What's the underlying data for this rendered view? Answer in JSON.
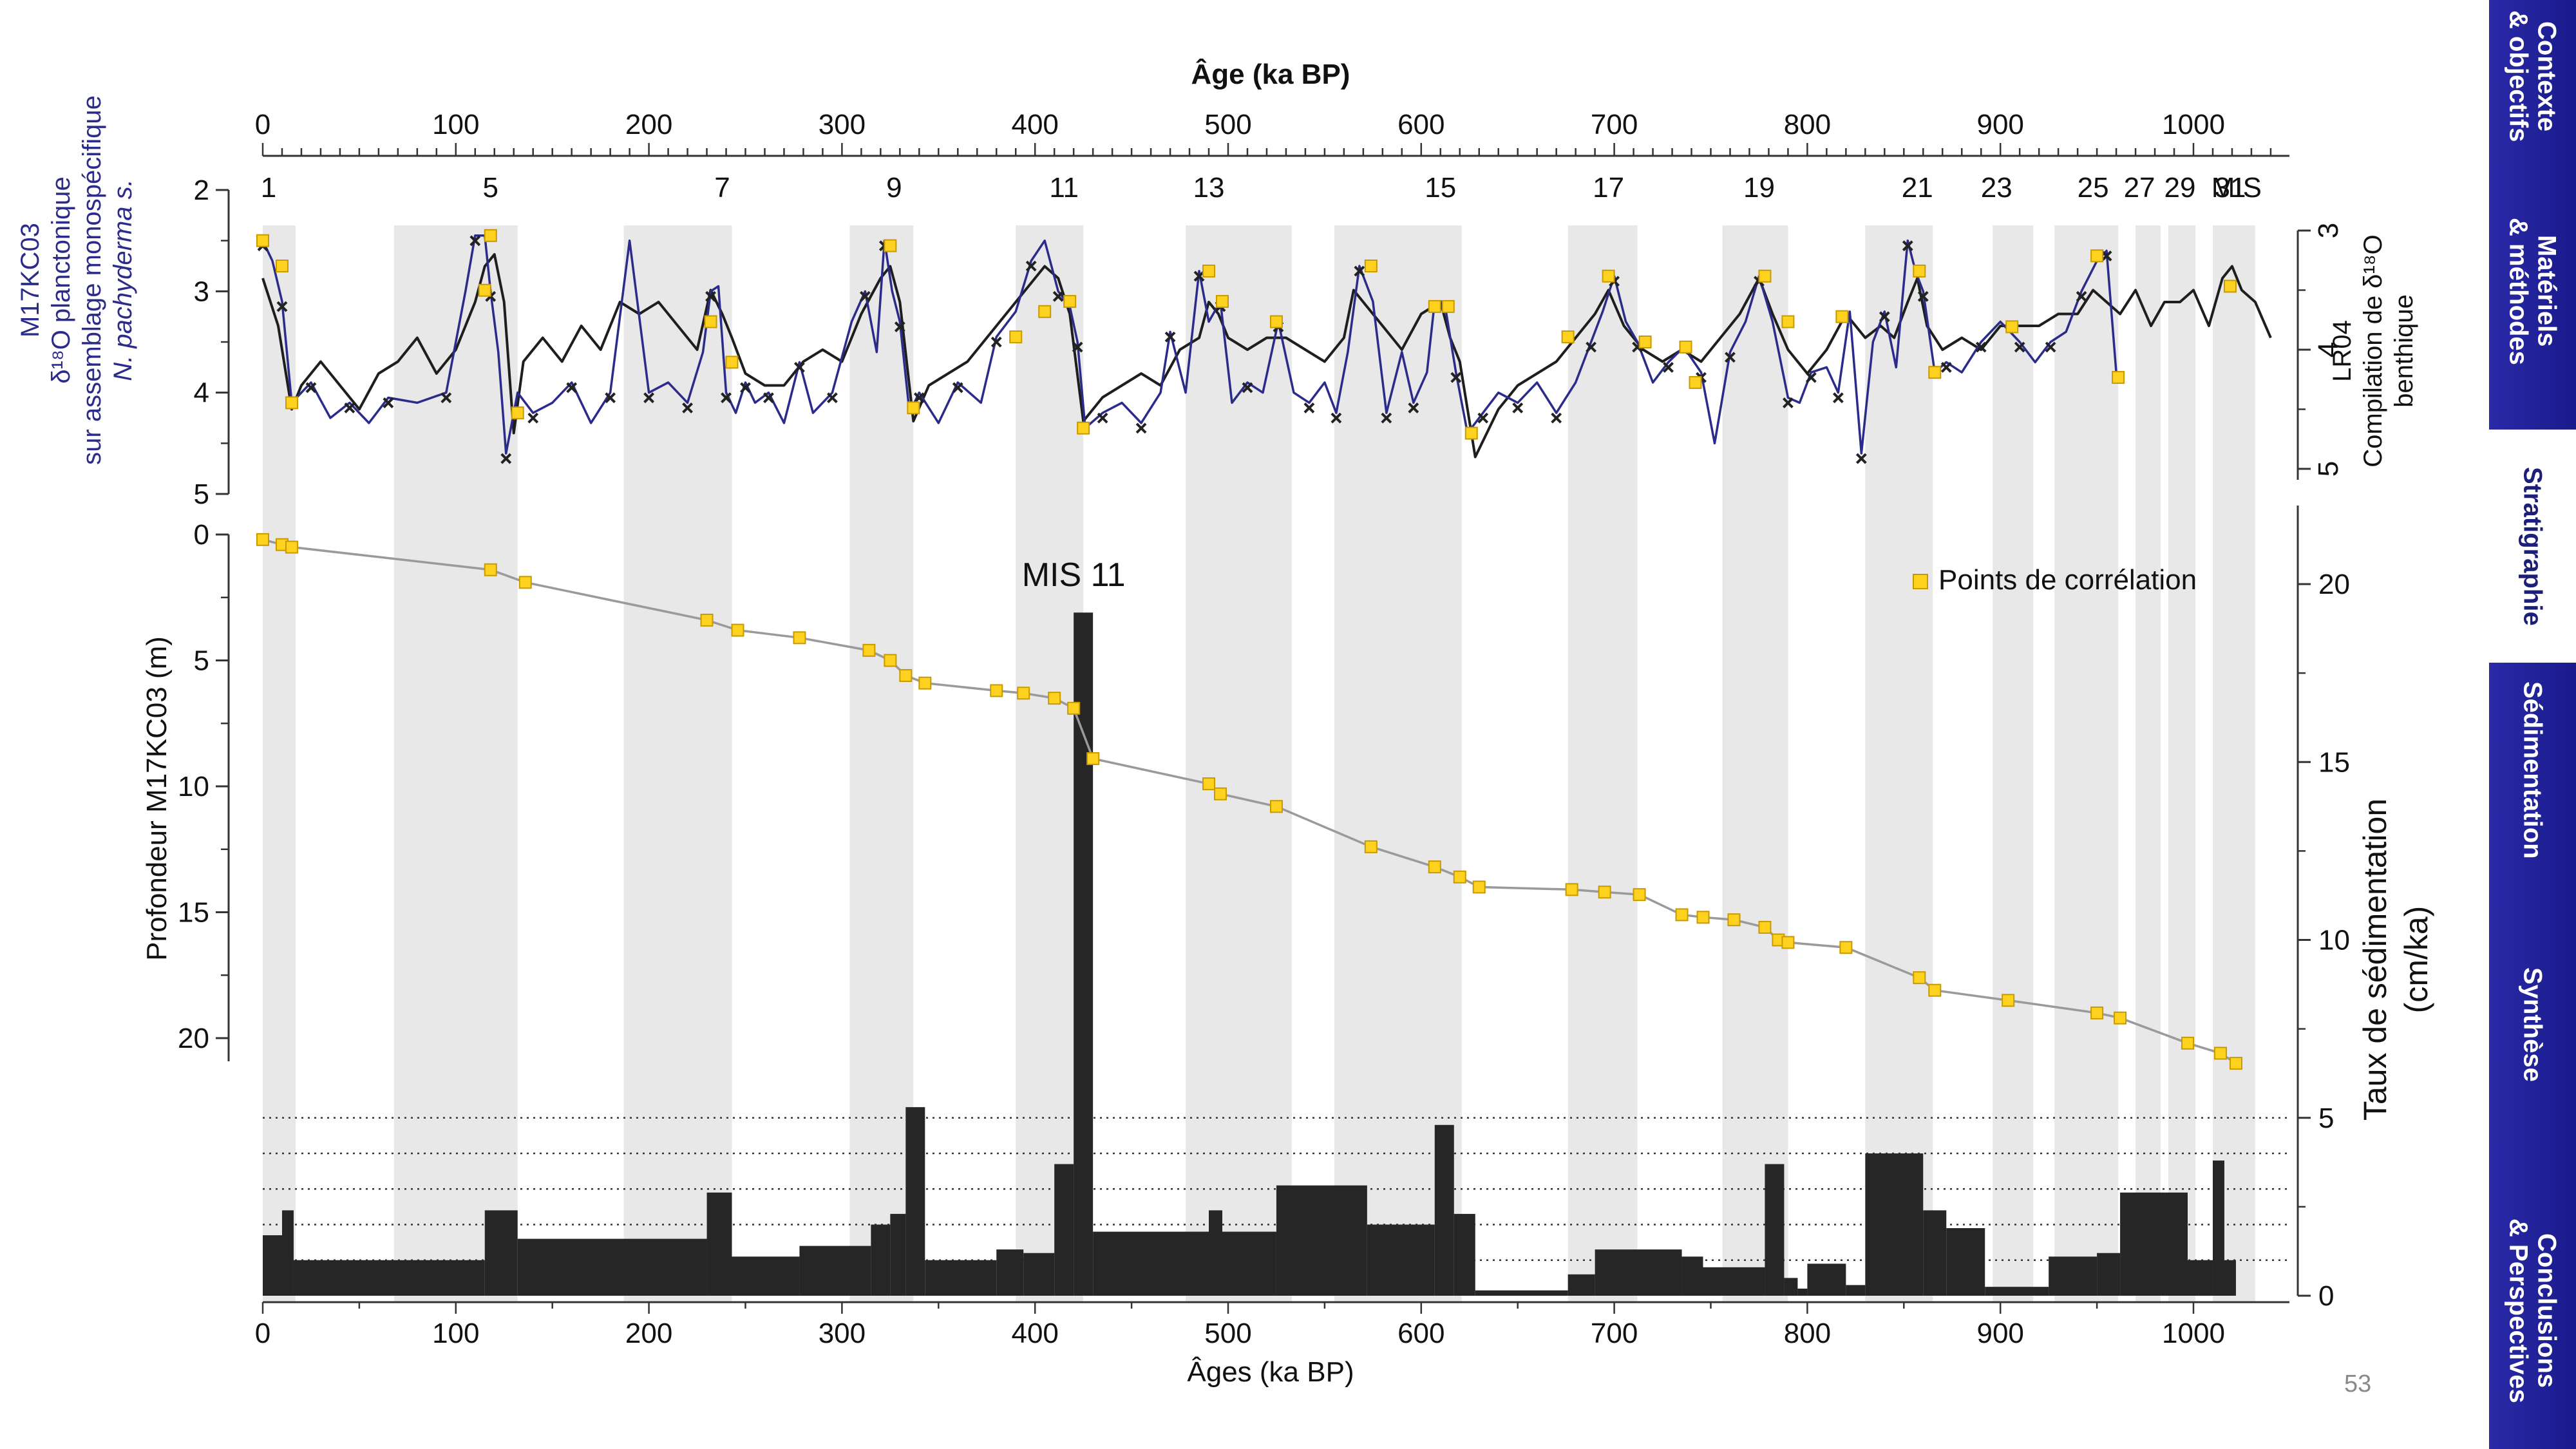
{
  "nav": {
    "items": [
      {
        "label": "Contexte\n& objectifs",
        "active": false
      },
      {
        "label": "Matériels\n& méthodes",
        "active": false
      },
      {
        "label": "Stratigraphie",
        "active": true
      },
      {
        "label": "Sédimentation",
        "active": false
      },
      {
        "label": "Synthèse",
        "active": false
      },
      {
        "label": "Conclusions\n& Perspectives",
        "active": false
      }
    ]
  },
  "page_number": "53",
  "colors": {
    "planktonic": "#2b2b8c",
    "lr04": "#1e1e1e",
    "tie_point_fill": "#ffd21f",
    "tie_point_stroke": "#c99a00",
    "depth_line": "#9a9a9a",
    "bars": "#262626",
    "shade": "#e8e8e8",
    "nav": "#1a1a8c"
  },
  "chart_data": {
    "type": "line",
    "top_axis_title": "Âge (ka BP)",
    "bottom_axis_title": "Âges (ka BP)",
    "x_ticks": [
      0,
      100,
      200,
      300,
      400,
      500,
      600,
      700,
      800,
      900,
      1000
    ],
    "xlim": [
      0,
      1040
    ],
    "mis_axis_label": "MIS",
    "mis_labels": [
      {
        "label": "1",
        "age": 3
      },
      {
        "label": "5",
        "age": 118
      },
      {
        "label": "7",
        "age": 238
      },
      {
        "label": "9",
        "age": 327
      },
      {
        "label": "11",
        "age": 415
      },
      {
        "label": "13",
        "age": 490
      },
      {
        "label": "15",
        "age": 610
      },
      {
        "label": "17",
        "age": 697
      },
      {
        "label": "19",
        "age": 775
      },
      {
        "label": "21",
        "age": 857
      },
      {
        "label": "23",
        "age": 898
      },
      {
        "label": "25",
        "age": 948
      },
      {
        "label": "27",
        "age": 972
      },
      {
        "label": "29",
        "age": 993
      },
      {
        "label": "31",
        "age": 1019
      }
    ],
    "interglacial_bands": [
      [
        0,
        17
      ],
      [
        68,
        132
      ],
      [
        187,
        243
      ],
      [
        304,
        337
      ],
      [
        390,
        425
      ],
      [
        478,
        533
      ],
      [
        555,
        621
      ],
      [
        676,
        712
      ],
      [
        756,
        790
      ],
      [
        830,
        865
      ],
      [
        896,
        917
      ],
      [
        928,
        961
      ],
      [
        970,
        983
      ],
      [
        987,
        1001
      ],
      [
        1010,
        1032
      ]
    ],
    "d18o_panel": {
      "left_axis_title_lines": [
        "M17KC03",
        "δ¹⁸O planctonique",
        "sur assemblage monospécifique",
        "N. pachyderma s."
      ],
      "right_axis_title_lines": [
        "LR04",
        "Compilation de δ¹⁸O",
        "benthique"
      ],
      "left_ylim": [
        2,
        5
      ],
      "left_ticks": [
        2,
        3,
        4,
        5
      ],
      "right_ylim": [
        2.6,
        5.4
      ],
      "right_ticks": [
        3,
        4,
        5
      ],
      "series": [
        {
          "name": "N. pachyderma s.",
          "x": [
            0,
            5,
            10,
            15,
            25,
            35,
            45,
            55,
            65,
            80,
            95,
            105,
            110,
            115,
            118,
            122,
            126,
            132,
            140,
            150,
            160,
            170,
            180,
            190,
            200,
            210,
            220,
            228,
            232,
            236,
            240,
            245,
            250,
            255,
            262,
            270,
            278,
            285,
            295,
            305,
            312,
            318,
            322,
            326,
            330,
            335,
            340,
            350,
            360,
            372,
            380,
            390,
            398,
            405,
            412,
            418,
            422,
            426,
            435,
            445,
            455,
            465,
            470,
            478,
            485,
            490,
            496,
            502,
            510,
            518,
            526,
            534,
            542,
            550,
            556,
            562,
            568,
            575,
            582,
            590,
            596,
            603,
            607,
            612,
            618,
            624,
            632,
            640,
            650,
            660,
            670,
            680,
            688,
            694,
            700,
            706,
            712,
            720,
            728,
            736,
            745,
            752,
            760,
            768,
            775,
            782,
            790,
            796,
            802,
            810,
            816,
            822,
            828,
            834,
            840,
            846,
            852,
            856,
            860,
            866,
            872,
            880,
            890,
            900,
            910,
            918,
            926,
            934,
            942,
            950,
            955,
            960
          ],
          "y": [
            2.5,
            2.7,
            3.1,
            4.1,
            3.9,
            4.25,
            4.1,
            4.3,
            4.05,
            4.1,
            4.0,
            3.0,
            2.45,
            2.45,
            3.0,
            3.6,
            4.6,
            4.0,
            4.2,
            4.1,
            3.9,
            4.3,
            4.0,
            2.5,
            4.0,
            3.9,
            4.1,
            3.6,
            3.0,
            2.95,
            4.0,
            4.2,
            3.9,
            4.1,
            4.0,
            4.3,
            3.7,
            4.2,
            4.0,
            3.3,
            3.0,
            3.6,
            2.5,
            3.0,
            3.3,
            4.2,
            4.0,
            4.3,
            3.9,
            4.1,
            3.45,
            3.2,
            2.7,
            2.5,
            3.0,
            3.15,
            3.5,
            4.35,
            4.2,
            4.1,
            4.3,
            4.0,
            3.4,
            4.0,
            2.8,
            3.3,
            3.1,
            4.1,
            3.9,
            4.0,
            3.3,
            4.0,
            4.1,
            3.9,
            4.2,
            3.6,
            2.75,
            3.1,
            4.2,
            3.6,
            4.1,
            3.8,
            3.1,
            3.1,
            3.8,
            4.4,
            4.2,
            4.0,
            4.1,
            3.9,
            4.2,
            3.9,
            3.5,
            3.2,
            2.85,
            3.3,
            3.5,
            3.9,
            3.7,
            3.55,
            3.8,
            4.5,
            3.6,
            3.3,
            2.85,
            3.3,
            4.05,
            4.1,
            3.8,
            3.75,
            4.0,
            3.2,
            4.6,
            3.5,
            3.2,
            3.75,
            2.5,
            2.8,
            3.0,
            3.8,
            3.7,
            3.8,
            3.5,
            3.3,
            3.5,
            3.7,
            3.5,
            3.4,
            3.0,
            2.7,
            2.6,
            3.8
          ]
        },
        {
          "name": "LR04",
          "x": [
            0,
            8,
            15,
            20,
            30,
            40,
            50,
            60,
            70,
            80,
            90,
            100,
            110,
            115,
            120,
            125,
            130,
            135,
            145,
            155,
            165,
            175,
            185,
            195,
            205,
            215,
            225,
            232,
            238,
            243,
            250,
            260,
            270,
            280,
            290,
            300,
            310,
            320,
            325,
            330,
            337,
            345,
            355,
            365,
            375,
            385,
            395,
            405,
            412,
            418,
            425,
            435,
            445,
            455,
            465,
            475,
            485,
            490,
            495,
            500,
            510,
            520,
            530,
            540,
            550,
            560,
            565,
            570,
            580,
            590,
            600,
            610,
            615,
            620,
            628,
            640,
            650,
            660,
            670,
            680,
            690,
            697,
            705,
            715,
            725,
            735,
            745,
            755,
            765,
            775,
            782,
            790,
            800,
            810,
            820,
            830,
            838,
            845,
            852,
            857,
            862,
            870,
            880,
            890,
            900,
            910,
            920,
            930,
            940,
            948,
            955,
            962,
            970,
            978,
            985,
            993,
            1000,
            1008,
            1015,
            1020,
            1025,
            1032,
            1040
          ],
          "y": [
            3.4,
            3.8,
            4.5,
            4.3,
            4.1,
            4.3,
            4.5,
            4.2,
            4.1,
            3.9,
            4.2,
            4.0,
            3.6,
            3.3,
            3.2,
            3.6,
            4.7,
            4.1,
            3.9,
            4.1,
            3.8,
            4.0,
            3.6,
            3.7,
            3.6,
            3.8,
            4.0,
            3.5,
            3.7,
            3.9,
            4.2,
            4.3,
            4.3,
            4.1,
            4.0,
            4.1,
            3.7,
            3.4,
            3.3,
            3.6,
            4.6,
            4.3,
            4.2,
            4.1,
            3.9,
            3.7,
            3.5,
            3.3,
            3.4,
            3.7,
            4.6,
            4.4,
            4.3,
            4.2,
            4.3,
            4.0,
            3.9,
            3.6,
            3.7,
            3.9,
            4.0,
            3.9,
            3.9,
            4.0,
            4.1,
            3.9,
            3.5,
            3.6,
            3.8,
            4.0,
            3.7,
            3.6,
            3.9,
            4.1,
            4.9,
            4.5,
            4.3,
            4.2,
            4.1,
            3.9,
            3.7,
            3.5,
            3.8,
            4.0,
            4.1,
            4.0,
            4.1,
            3.9,
            3.7,
            3.4,
            3.7,
            4.0,
            4.2,
            4.0,
            3.7,
            3.9,
            3.8,
            3.9,
            3.6,
            3.4,
            3.8,
            4.0,
            3.9,
            4.0,
            3.8,
            3.8,
            3.8,
            3.7,
            3.7,
            3.5,
            3.6,
            3.7,
            3.5,
            3.8,
            3.6,
            3.6,
            3.5,
            3.8,
            3.4,
            3.3,
            3.5,
            3.6,
            3.9
          ]
        }
      ],
      "tie_points": {
        "x": [
          0,
          10,
          15,
          115,
          118,
          132,
          232,
          243,
          325,
          337,
          390,
          405,
          418,
          425,
          490,
          497,
          525,
          574,
          607,
          614,
          626,
          676,
          697,
          716,
          737,
          742,
          778,
          790,
          818,
          858,
          866,
          906,
          950,
          961,
          1019
        ],
        "y": [
          2.5,
          2.75,
          4.1,
          2.99,
          2.45,
          4.2,
          3.3,
          3.7,
          2.55,
          4.15,
          3.45,
          3.2,
          3.1,
          4.35,
          2.8,
          3.1,
          3.3,
          2.75,
          3.15,
          3.15,
          4.4,
          3.45,
          2.85,
          3.5,
          3.55,
          3.9,
          2.85,
          3.3,
          3.25,
          2.8,
          3.8,
          3.35,
          2.65,
          3.85,
          2.95
        ]
      },
      "pink_markers_x": [
        5,
        30,
        60,
        112,
        128,
        140,
        160,
        190,
        240,
        270,
        300,
        340,
        360,
        390,
        420,
        440,
        470,
        530,
        590,
        640,
        690,
        740,
        780,
        800,
        840,
        860,
        900,
        950
      ]
    },
    "depth_panel": {
      "left_axis_title": "Profondeur M17KC03 (m)",
      "ylim": [
        0,
        22
      ],
      "ticks": [
        0,
        5,
        10,
        15,
        20
      ],
      "series_name": "Points de corrélation",
      "annotation": "MIS 11",
      "annotation_age": 420,
      "x": [
        0,
        10,
        15,
        118,
        136,
        230,
        246,
        278,
        314,
        325,
        333,
        343,
        380,
        394,
        410,
        420,
        430,
        490,
        496,
        525,
        574,
        607,
        620,
        630,
        678,
        695,
        713,
        735,
        746,
        762,
        778,
        785,
        790,
        820,
        858,
        866,
        904,
        950,
        962,
        997,
        1014,
        1022
      ],
      "depth_m": [
        0.2,
        0.4,
        0.5,
        1.4,
        1.9,
        3.4,
        3.8,
        4.1,
        4.6,
        5.0,
        5.6,
        5.9,
        6.2,
        6.3,
        6.5,
        6.9,
        8.9,
        9.9,
        10.3,
        10.8,
        12.4,
        13.2,
        13.6,
        14.0,
        14.1,
        14.2,
        14.3,
        15.1,
        15.2,
        15.3,
        15.6,
        16.1,
        16.2,
        16.4,
        17.6,
        18.1,
        18.5,
        19.0,
        19.2,
        20.2,
        20.6,
        21.0
      ]
    },
    "sed_rate_panel": {
      "right_axis_title_lines": [
        "Taux de sédimentation",
        "(cm/ka)"
      ],
      "ylim": [
        0,
        21
      ],
      "ticks": [
        0,
        5,
        10,
        15,
        20
      ],
      "dotted_levels": [
        1.0,
        2.0,
        3.0,
        4.0,
        5.0
      ],
      "bins": [
        {
          "from": 0,
          "to": 10,
          "value": 1.7
        },
        {
          "from": 10,
          "to": 16,
          "value": 2.4
        },
        {
          "from": 16,
          "to": 115,
          "value": 1.0
        },
        {
          "from": 115,
          "to": 132,
          "value": 2.4
        },
        {
          "from": 132,
          "to": 230,
          "value": 1.6
        },
        {
          "from": 230,
          "to": 243,
          "value": 2.9
        },
        {
          "from": 243,
          "to": 278,
          "value": 1.1
        },
        {
          "from": 278,
          "to": 315,
          "value": 1.4
        },
        {
          "from": 315,
          "to": 325,
          "value": 2.0
        },
        {
          "from": 325,
          "to": 333,
          "value": 2.3
        },
        {
          "from": 333,
          "to": 343,
          "value": 5.3
        },
        {
          "from": 343,
          "to": 380,
          "value": 1.0
        },
        {
          "from": 380,
          "to": 394,
          "value": 1.3
        },
        {
          "from": 394,
          "to": 410,
          "value": 1.2
        },
        {
          "from": 410,
          "to": 420,
          "value": 3.7
        },
        {
          "from": 420,
          "to": 430,
          "value": 19.2
        },
        {
          "from": 430,
          "to": 490,
          "value": 1.8
        },
        {
          "from": 490,
          "to": 497,
          "value": 2.4
        },
        {
          "from": 497,
          "to": 525,
          "value": 1.8
        },
        {
          "from": 525,
          "to": 572,
          "value": 3.1
        },
        {
          "from": 572,
          "to": 607,
          "value": 2.0
        },
        {
          "from": 607,
          "to": 617,
          "value": 4.8
        },
        {
          "from": 617,
          "to": 628,
          "value": 2.3
        },
        {
          "from": 628,
          "to": 676,
          "value": 0.15
        },
        {
          "from": 676,
          "to": 690,
          "value": 0.6
        },
        {
          "from": 690,
          "to": 735,
          "value": 1.3
        },
        {
          "from": 735,
          "to": 746,
          "value": 1.1
        },
        {
          "from": 746,
          "to": 778,
          "value": 0.8
        },
        {
          "from": 778,
          "to": 788,
          "value": 3.7
        },
        {
          "from": 788,
          "to": 795,
          "value": 0.5
        },
        {
          "from": 795,
          "to": 800,
          "value": 0.2
        },
        {
          "from": 800,
          "to": 820,
          "value": 0.9
        },
        {
          "from": 820,
          "to": 830,
          "value": 0.3
        },
        {
          "from": 830,
          "to": 860,
          "value": 4.0
        },
        {
          "from": 860,
          "to": 872,
          "value": 2.4
        },
        {
          "from": 872,
          "to": 892,
          "value": 1.9
        },
        {
          "from": 892,
          "to": 925,
          "value": 0.25
        },
        {
          "from": 925,
          "to": 950,
          "value": 1.1
        },
        {
          "from": 950,
          "to": 962,
          "value": 1.2
        },
        {
          "from": 962,
          "to": 997,
          "value": 2.9
        },
        {
          "from": 997,
          "to": 1010,
          "value": 1.0
        },
        {
          "from": 1010,
          "to": 1016,
          "value": 3.8
        },
        {
          "from": 1016,
          "to": 1022,
          "value": 1.0
        }
      ]
    }
  }
}
